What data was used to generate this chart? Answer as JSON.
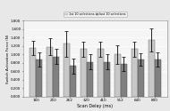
{
  "categories": [
    "160",
    "210",
    "262",
    "320",
    "410",
    "512",
    "640",
    "800"
  ],
  "first10_values": [
    1.15,
    1.175,
    1.25,
    1.125,
    1.125,
    1.0,
    1.125,
    1.35
  ],
  "last10_values": [
    0.875,
    0.95,
    0.725,
    0.825,
    0.825,
    0.775,
    0.875,
    0.875
  ],
  "first10_errors": [
    0.175,
    0.2,
    0.3,
    0.175,
    0.175,
    0.225,
    0.175,
    0.275
  ],
  "last10_errors": [
    0.175,
    0.175,
    0.175,
    0.175,
    0.175,
    0.175,
    0.15,
    0.175
  ],
  "first10_color": "#c8c8c8",
  "last10_color": "#808080",
  "xlabel": "Scan Delay (ms)",
  "ylabel": "Switch Activation Force (N)",
  "ylim": [
    0.0,
    1.8
  ],
  "yticks": [
    0.0,
    0.2,
    0.4,
    0.6,
    0.8,
    1.0,
    1.2,
    1.4,
    1.6,
    1.8
  ],
  "ytick_labels": [
    "0.000",
    "0.200",
    "0.400",
    "0.600",
    "0.800",
    "1.000",
    "1.200",
    "1.400",
    "1.600",
    "1.800"
  ],
  "legend_labels": [
    "1st 10 selections",
    "last 10 selections"
  ],
  "bar_width": 0.38,
  "bg_color": "#e8e8e8",
  "plot_bg": "#f5f5f5",
  "grid_color": "#ffffff"
}
